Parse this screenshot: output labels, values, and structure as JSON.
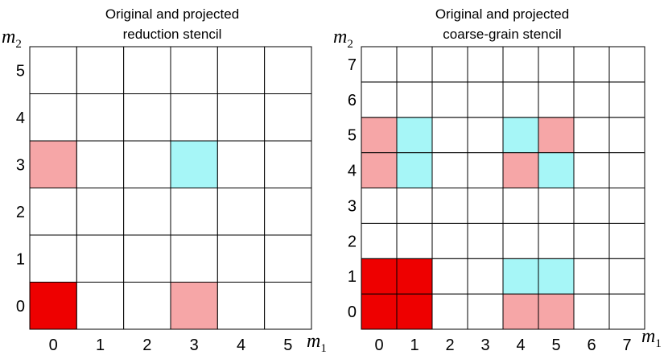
{
  "colors": {
    "red": "#ee0000",
    "pink": "#f6a6a7",
    "cyan": "#a6f6f7",
    "empty": "#ffffff",
    "grid": "#000000"
  },
  "panels": [
    {
      "title_line1": "Original and projected",
      "title_line2": "reduction stencil",
      "x_axis_label": "m",
      "x_axis_sub": "1",
      "y_axis_label": "m",
      "y_axis_sub": "2",
      "x_ticks": [
        "0",
        "1",
        "2",
        "3",
        "4",
        "5"
      ],
      "y_ticks": [
        "0",
        "1",
        "2",
        "3",
        "4",
        "5"
      ],
      "cols": 6,
      "rows": 6,
      "cells": [
        {
          "m1": 0,
          "m2": 0,
          "color": "red"
        },
        {
          "m1": 3,
          "m2": 0,
          "color": "pink"
        },
        {
          "m1": 0,
          "m2": 3,
          "color": "pink"
        },
        {
          "m1": 3,
          "m2": 3,
          "color": "cyan"
        }
      ]
    },
    {
      "title_line1": "Original and projected",
      "title_line2": "coarse-grain stencil",
      "x_axis_label": "m",
      "x_axis_sub": "1",
      "y_axis_label": "m",
      "y_axis_sub": "2",
      "x_ticks": [
        "0",
        "1",
        "2",
        "3",
        "4",
        "5",
        "6",
        "7"
      ],
      "y_ticks": [
        "0",
        "1",
        "2",
        "3",
        "4",
        "5",
        "6",
        "7"
      ],
      "cols": 8,
      "rows": 8,
      "cells": [
        {
          "m1": 0,
          "m2": 0,
          "color": "red"
        },
        {
          "m1": 1,
          "m2": 0,
          "color": "red"
        },
        {
          "m1": 0,
          "m2": 1,
          "color": "red"
        },
        {
          "m1": 1,
          "m2": 1,
          "color": "red"
        },
        {
          "m1": 4,
          "m2": 0,
          "color": "pink"
        },
        {
          "m1": 5,
          "m2": 0,
          "color": "pink"
        },
        {
          "m1": 4,
          "m2": 1,
          "color": "cyan"
        },
        {
          "m1": 5,
          "m2": 1,
          "color": "cyan"
        },
        {
          "m1": 0,
          "m2": 4,
          "color": "pink"
        },
        {
          "m1": 1,
          "m2": 4,
          "color": "cyan"
        },
        {
          "m1": 0,
          "m2": 5,
          "color": "pink"
        },
        {
          "m1": 1,
          "m2": 5,
          "color": "cyan"
        },
        {
          "m1": 4,
          "m2": 4,
          "color": "pink"
        },
        {
          "m1": 5,
          "m2": 4,
          "color": "cyan"
        },
        {
          "m1": 4,
          "m2": 5,
          "color": "cyan"
        },
        {
          "m1": 5,
          "m2": 5,
          "color": "pink"
        }
      ]
    }
  ]
}
